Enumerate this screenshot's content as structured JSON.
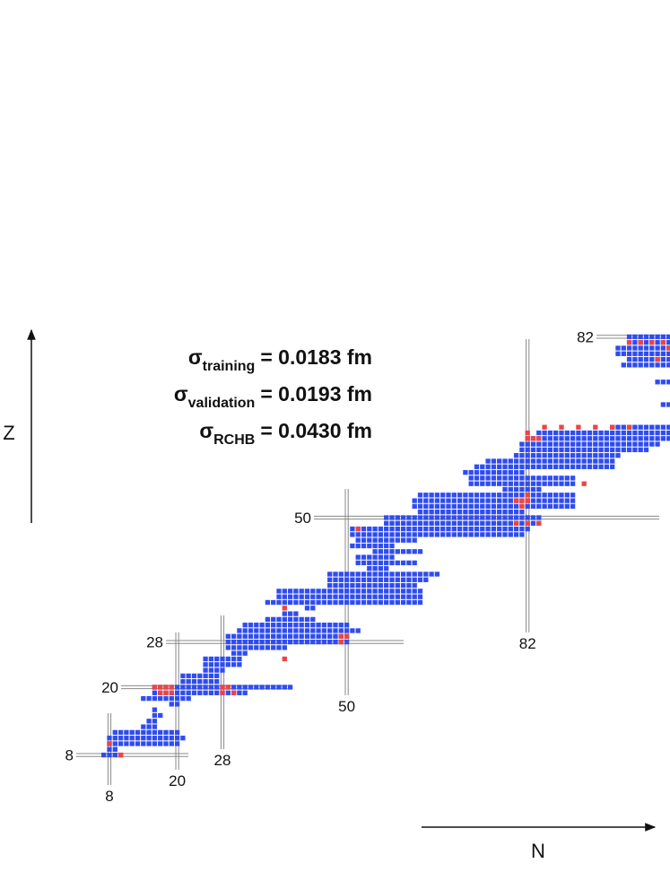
{
  "chart_data": {
    "type": "nuclide",
    "x_label": "N",
    "y_label": "Z",
    "xlim": [
      0,
      107
    ],
    "ylim": [
      0,
      84
    ],
    "magic_n": [
      8,
      20,
      28,
      50,
      82
    ],
    "magic_z": [
      8,
      20,
      28,
      50,
      82
    ],
    "annotations": [
      {
        "symbol": "σ",
        "subscript": "training",
        "text": "= 0.0183 fm"
      },
      {
        "symbol": "σ",
        "subscript": "validation",
        "text": "= 0.0193 fm"
      },
      {
        "symbol": "σ",
        "subscript": "RCHB",
        "text": "= 0.0430 fm"
      }
    ],
    "rows": {
      "color": "#2f4cf0",
      "z": [
        8,
        9,
        10,
        11,
        12,
        13,
        14,
        15,
        16,
        17,
        18,
        19,
        20,
        21,
        22,
        23,
        24,
        25,
        26,
        27,
        28,
        29,
        30,
        31,
        32,
        33,
        34,
        35,
        36,
        37,
        38,
        39,
        40,
        41,
        42,
        43,
        44,
        45,
        46,
        47,
        48,
        49,
        50,
        51,
        52,
        53,
        54,
        55,
        56,
        57,
        58,
        59,
        60,
        61,
        62,
        63,
        64,
        65,
        66,
        70,
        74,
        77,
        78,
        79,
        80,
        81,
        82
      ],
      "n_from": [
        7,
        8,
        8,
        8,
        9,
        14,
        15,
        16,
        16,
        19,
        14,
        16,
        16,
        21,
        21,
        25,
        25,
        25,
        30,
        29,
        29,
        29,
        31,
        32,
        36,
        39,
        43,
        36,
        38,
        38,
        47,
        47,
        47,
        54,
        52,
        52,
        55,
        51,
        52,
        51,
        51,
        57,
        57,
        63,
        62,
        62,
        63,
        78,
        72,
        72,
        71,
        73,
        75,
        80,
        81,
        81,
        82,
        84,
        97,
        106,
        105,
        99,
        100,
        98,
        98,
        100,
        100
      ],
      "n_to": [
        10,
        9,
        20,
        21,
        20,
        16,
        16,
        17,
        16,
        20,
        22,
        32,
        40,
        27,
        27,
        28,
        31,
        31,
        32,
        39,
        50,
        50,
        52,
        50,
        44,
        41,
        44,
        63,
        63,
        63,
        62,
        64,
        66,
        57,
        62,
        58,
        63,
        58,
        62,
        81,
        82,
        84,
        84,
        81,
        90,
        90,
        90,
        84,
        90,
        90,
        81,
        97,
        97,
        98,
        103,
        105,
        107,
        107,
        107,
        107,
        107,
        107,
        107,
        107,
        107,
        107,
        107
      ]
    },
    "highlights": {
      "color": "#ee4444",
      "n": [
        8,
        10,
        16,
        17,
        18,
        19,
        17,
        18,
        19,
        28,
        28,
        29,
        30,
        39,
        39,
        49,
        50,
        49,
        52,
        80,
        82,
        84,
        80,
        81,
        82,
        82,
        81,
        92,
        82,
        83,
        84,
        82,
        85,
        88,
        91,
        94,
        97,
        100,
        100,
        102,
        104,
        106,
        107,
        105
      ],
      "z": [
        10,
        8,
        20,
        20,
        20,
        20,
        19,
        19,
        19,
        19,
        20,
        20,
        19,
        25,
        34,
        29,
        29,
        28,
        48,
        49,
        49,
        49,
        53,
        53,
        53,
        54,
        52,
        56,
        64,
        64,
        64,
        65,
        66,
        66,
        66,
        66,
        66,
        66,
        81,
        81,
        81,
        81,
        80,
        78
      ]
    }
  }
}
